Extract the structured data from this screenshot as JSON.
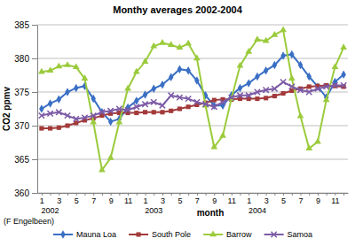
{
  "chart_data": {
    "type": "line",
    "title": "Monthy averages 2002-2004",
    "x_label": "month",
    "y_label": "CO2 ppmv",
    "x_groups": [
      "2002",
      "2003",
      "2004"
    ],
    "source": "(F Engelbeen)",
    "categories": [
      "1",
      null,
      "3",
      null,
      "5",
      null,
      "7",
      null,
      "9",
      null,
      "11",
      null,
      "1",
      null,
      "3",
      null,
      "5",
      null,
      "7",
      null,
      "9",
      null,
      "11",
      null,
      "1",
      null,
      "3",
      null,
      "5",
      null,
      "7",
      null,
      "9",
      null,
      "11",
      null
    ],
    "ylim": [
      360,
      385
    ],
    "yticks": [
      360,
      365,
      370,
      375,
      380,
      385
    ],
    "grid": true,
    "legend": "bottom",
    "series": [
      {
        "name": "Mauna Loa",
        "color": "#3a6fc4",
        "marker": "diamond",
        "values": [
          372.5,
          373.3,
          373.9,
          375.0,
          375.6,
          375.9,
          374.0,
          372.0,
          370.6,
          371.0,
          372.7,
          373.7,
          374.6,
          375.5,
          376.1,
          377.2,
          378.4,
          378.2,
          376.7,
          374.5,
          373.0,
          373.0,
          374.5,
          375.6,
          376.3,
          377.3,
          378.2,
          379.0,
          380.4,
          380.6,
          379.0,
          377.3,
          375.8,
          374.2,
          376.5,
          377.6
        ]
      },
      {
        "name": "South Pole",
        "color": "#a33a3a",
        "marker": "square",
        "values": [
          369.6,
          369.6,
          369.7,
          370.0,
          370.4,
          370.8,
          371.1,
          371.5,
          371.8,
          371.9,
          371.9,
          371.9,
          372.0,
          372.0,
          372.0,
          372.2,
          372.5,
          372.8,
          373.1,
          373.4,
          373.8,
          373.9,
          373.9,
          374.0,
          374.0,
          374.0,
          374.1,
          374.4,
          374.8,
          375.2,
          375.5,
          375.8,
          375.9,
          376.0,
          375.9,
          375.8
        ]
      },
      {
        "name": "Barrow",
        "color": "#9bcb3c",
        "marker": "triangle",
        "values": [
          378.0,
          378.2,
          378.8,
          379.0,
          378.7,
          377.0,
          370.5,
          363.4,
          365.2,
          370.5,
          375.5,
          378.0,
          379.5,
          381.8,
          382.3,
          382.0,
          381.6,
          382.2,
          380.0,
          373.0,
          366.8,
          368.5,
          374.0,
          378.9,
          381.0,
          382.8,
          382.6,
          383.5,
          384.2,
          377.0,
          371.4,
          366.6,
          367.6,
          373.8,
          378.7,
          381.6
        ]
      },
      {
        "name": "Samoa",
        "color": "#7d5ba6",
        "marker": "x",
        "values": [
          371.5,
          371.8,
          372.0,
          371.5,
          371.0,
          371.2,
          371.5,
          372.0,
          372.2,
          372.5,
          372.3,
          372.8,
          373.2,
          373.5,
          373.0,
          374.5,
          374.2,
          374.0,
          373.5,
          373.2,
          372.8,
          373.5,
          374.2,
          374.5,
          374.5,
          375.0,
          375.3,
          375.5,
          376.5,
          375.8,
          375.3,
          375.0,
          375.5,
          375.8,
          376.0,
          376.0
        ]
      }
    ]
  }
}
